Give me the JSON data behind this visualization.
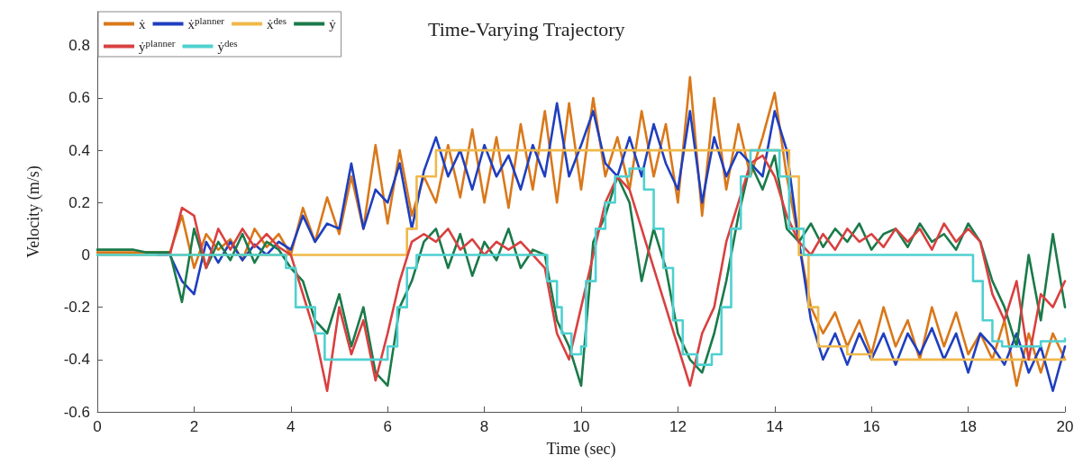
{
  "chart_data": {
    "type": "line",
    "title": "Time-Varying Trajectory",
    "xlabel": "Time (sec)",
    "ylabel": "Velocity (m/s)",
    "xlim": [
      0,
      20
    ],
    "xticks": [
      0,
      2,
      4,
      6,
      8,
      10,
      12,
      14,
      16,
      18,
      20
    ],
    "ylim": [
      -0.6,
      0.93
    ],
    "yticks": [
      -0.6,
      -0.4,
      -0.2,
      0,
      0.2,
      0.4,
      0.6,
      0.8
    ],
    "grid": false,
    "legend": "top left",
    "marker": "none",
    "line_style": "solid",
    "x": [
      0,
      0.25,
      0.5,
      0.75,
      1,
      1.25,
      1.5,
      1.75,
      2,
      2.25,
      2.5,
      2.75,
      3,
      3.25,
      3.5,
      3.75,
      4,
      4.25,
      4.5,
      4.75,
      5,
      5.25,
      5.5,
      5.75,
      6,
      6.25,
      6.5,
      6.75,
      7,
      7.25,
      7.5,
      7.75,
      8,
      8.25,
      8.5,
      8.75,
      9,
      9.25,
      9.5,
      9.75,
      10,
      10.25,
      10.5,
      10.75,
      11,
      11.25,
      11.5,
      11.75,
      12,
      12.25,
      12.5,
      12.75,
      13,
      13.25,
      13.5,
      13.75,
      14,
      14.25,
      14.5,
      14.75,
      15,
      15.25,
      15.5,
      15.75,
      16,
      16.25,
      16.5,
      16.75,
      17,
      17.25,
      17.5,
      17.75,
      18,
      18.25,
      18.5,
      18.75,
      19,
      19.25,
      19.5,
      19.75,
      20
    ],
    "series": [
      {
        "name": "ẋ",
        "color": "#d9781a",
        "values": [
          0.01,
          0.01,
          0.01,
          0.01,
          0.01,
          0.01,
          0.01,
          0.15,
          -0.05,
          0.08,
          0.02,
          0.06,
          -0.02,
          0.1,
          0.03,
          0.08,
          0,
          0.18,
          0.05,
          0.22,
          0.08,
          0.3,
          0.1,
          0.42,
          0.12,
          0.4,
          0.15,
          0.3,
          0.2,
          0.42,
          0.22,
          0.48,
          0.2,
          0.45,
          0.18,
          0.5,
          0.25,
          0.55,
          0.2,
          0.58,
          0.25,
          0.6,
          0.3,
          0.45,
          0.25,
          0.55,
          0.3,
          0.5,
          0.2,
          0.68,
          0.15,
          0.6,
          0.25,
          0.5,
          0.3,
          0.45,
          0.62,
          0.3,
          0.05,
          -0.2,
          -0.3,
          -0.22,
          -0.35,
          -0.25,
          -0.38,
          -0.2,
          -0.35,
          -0.25,
          -0.4,
          -0.2,
          -0.35,
          -0.22,
          -0.38,
          -0.3,
          -0.4,
          -0.25,
          -0.5,
          -0.3,
          -0.45,
          -0.3,
          -0.4
        ]
      },
      {
        "name": "ẋ$^{planner}$",
        "color": "#1f3fbf",
        "values": [
          null,
          null,
          null,
          null,
          null,
          0,
          0,
          -0.1,
          -0.15,
          0.05,
          -0.03,
          0.05,
          -0.02,
          0.04,
          0,
          0.05,
          0.02,
          0.15,
          0.05,
          0.12,
          0.1,
          0.35,
          0.1,
          0.25,
          0.2,
          0.35,
          0.1,
          0.32,
          0.45,
          0.3,
          0.4,
          0.25,
          0.42,
          0.3,
          0.38,
          0.25,
          0.42,
          0.3,
          0.58,
          0.3,
          0.42,
          0.55,
          0.35,
          0.3,
          0.45,
          0.3,
          0.5,
          0.35,
          0.25,
          0.55,
          0.2,
          0.45,
          0.3,
          0.4,
          0.35,
          0.3,
          0.55,
          0.4,
          0.05,
          -0.25,
          -0.4,
          -0.3,
          -0.42,
          -0.3,
          -0.4,
          -0.3,
          -0.42,
          -0.3,
          -0.38,
          -0.28,
          -0.4,
          -0.3,
          -0.45,
          -0.3,
          -0.35,
          -0.42,
          -0.3,
          -0.45,
          -0.35,
          -0.52,
          -0.35
        ]
      },
      {
        "name": "ẋ$^{des}$",
        "type": "step",
        "color": "#f0b84a",
        "x": [
          0,
          6.4,
          6.6,
          7,
          14.3,
          14.5,
          14.7,
          14.9,
          15.5,
          16,
          20
        ],
        "values": [
          0,
          0.1,
          0.3,
          0.4,
          0.3,
          0,
          -0.2,
          -0.35,
          -0.38,
          -0.4,
          -0.4
        ]
      },
      {
        "name": "ẏ",
        "color": "#1a7a4a",
        "values": [
          0.02,
          0.02,
          0.02,
          0.02,
          0.01,
          0.01,
          0.01,
          -0.18,
          0.1,
          -0.05,
          0.05,
          -0.02,
          0.08,
          -0.03,
          0.05,
          0.02,
          -0.05,
          -0.1,
          -0.25,
          -0.3,
          -0.15,
          -0.35,
          -0.2,
          -0.45,
          -0.5,
          -0.2,
          -0.1,
          0.05,
          0.1,
          -0.05,
          0.08,
          -0.08,
          0.05,
          -0.02,
          0.1,
          -0.05,
          0.02,
          0,
          -0.25,
          -0.35,
          -0.5,
          0.05,
          0.15,
          0.3,
          0.2,
          -0.1,
          0.1,
          -0.05,
          -0.3,
          -0.4,
          -0.45,
          -0.3,
          -0.1,
          0.15,
          0.35,
          0.25,
          0.38,
          0.1,
          0.05,
          0.12,
          0.03,
          0.1,
          0.05,
          0.12,
          0.02,
          0.08,
          0.1,
          0.03,
          0.12,
          0.05,
          0.08,
          0.02,
          0.12,
          0.05,
          -0.1,
          -0.2,
          -0.35,
          0,
          -0.25,
          0.08,
          -0.2
        ]
      },
      {
        "name": "ẏ$^{planner}$",
        "color": "#d94040",
        "values": [
          null,
          null,
          null,
          null,
          null,
          0,
          0,
          0.18,
          0.15,
          -0.05,
          0.1,
          0.02,
          0.1,
          0.03,
          0.08,
          0.03,
          0,
          -0.15,
          -0.3,
          -0.52,
          -0.2,
          -0.38,
          -0.25,
          -0.48,
          -0.3,
          -0.1,
          0.05,
          0.08,
          0.05,
          0.1,
          0.02,
          0.06,
          0,
          0.05,
          0.02,
          0.05,
          0,
          -0.05,
          -0.3,
          -0.4,
          -0.2,
          0,
          0.2,
          0.3,
          0.25,
          0.1,
          -0.05,
          -0.2,
          -0.35,
          -0.5,
          -0.3,
          -0.2,
          0.05,
          0.2,
          0.35,
          0.38,
          0.3,
          0.15,
          0.05,
          0,
          0.08,
          0.02,
          0.1,
          0.05,
          0.08,
          0.03,
          0.1,
          0.05,
          0.1,
          0.02,
          0.12,
          0.05,
          0.1,
          0.05,
          -0.15,
          -0.25,
          -0.1,
          -0.4,
          -0.15,
          -0.2,
          -0.1
        ]
      },
      {
        "name": "ẏ$^{des}$",
        "type": "step",
        "color": "#4fd0d0",
        "x": [
          0,
          3.9,
          4.1,
          4.5,
          4.7,
          6,
          6.2,
          6.4,
          6.6,
          9.3,
          9.5,
          9.6,
          9.8,
          10,
          10.1,
          10.3,
          10.5,
          10.7,
          11,
          11.3,
          11.5,
          11.7,
          11.9,
          12.1,
          12.4,
          12.7,
          12.9,
          13.1,
          13.3,
          13.5,
          14.1,
          14.3,
          14.6,
          18.1,
          18.3,
          18.5,
          18.7,
          19.5,
          20
        ],
        "values": [
          0,
          -0.05,
          -0.2,
          -0.3,
          -0.4,
          -0.35,
          -0.2,
          -0.05,
          0,
          -0.1,
          -0.2,
          -0.3,
          -0.38,
          -0.35,
          -0.1,
          0.1,
          0.2,
          0.3,
          0.33,
          0.25,
          0.1,
          -0.05,
          -0.25,
          -0.38,
          -0.42,
          -0.38,
          -0.2,
          0.1,
          0.3,
          0.4,
          0.3,
          0.1,
          0,
          -0.1,
          -0.25,
          -0.33,
          -0.35,
          -0.33,
          -0.32
        ]
      }
    ]
  }
}
